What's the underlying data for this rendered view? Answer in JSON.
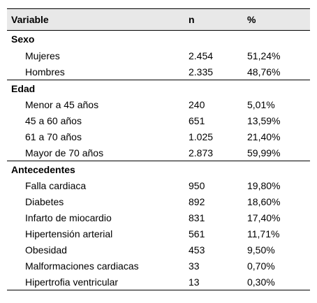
{
  "headers": {
    "variable": "Variable",
    "n": "n",
    "pct": "%"
  },
  "groups": [
    {
      "title": "Sexo",
      "rows": [
        {
          "label": "Mujeres",
          "n": "2.454",
          "pct": "51,24%"
        },
        {
          "label": "Hombres",
          "n": "2.335",
          "pct": "48,76%"
        }
      ]
    },
    {
      "title": "Edad",
      "rows": [
        {
          "label": "Menor a 45 años",
          "n": "240",
          "pct": "5,01%"
        },
        {
          "label": "45 a 60 años",
          "n": "651",
          "pct": "13,59%"
        },
        {
          "label": "61 a 70 años",
          "n": "1.025",
          "pct": "21,40%"
        },
        {
          "label": "Mayor de 70 años",
          "n": "2.873",
          "pct": "59,99%"
        }
      ]
    },
    {
      "title": "Antecedentes",
      "rows": [
        {
          "label": "Falla cardiaca",
          "n": "950",
          "pct": "19,80%"
        },
        {
          "label": "Diabetes",
          "n": "892",
          "pct": "18,60%"
        },
        {
          "label": "Infarto de miocardio",
          "n": "831",
          "pct": "17,40%"
        },
        {
          "label": "Hipertensión arterial",
          "n": "561",
          "pct": "11,71%"
        },
        {
          "label": "Obesidad",
          "n": "453",
          "pct": "9,50%"
        },
        {
          "label": "Malformaciones cardiacas",
          "n": "33",
          "pct": "0,70%"
        },
        {
          "label": "Hipertrofia ventricular",
          "n": "13",
          "pct": "0,30%"
        }
      ]
    }
  ]
}
